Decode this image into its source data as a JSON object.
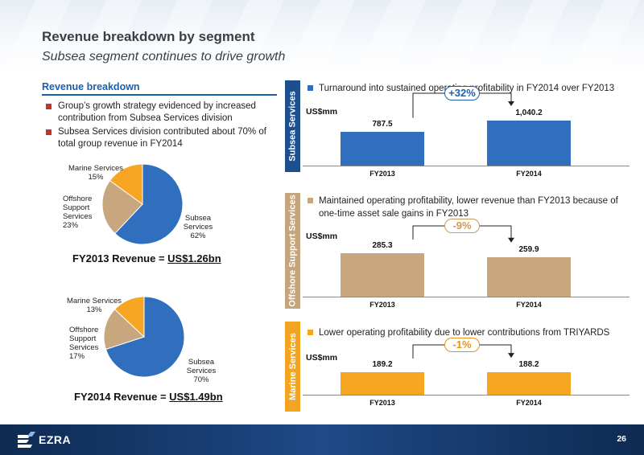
{
  "header": {
    "title": "Revenue breakdown by segment",
    "subtitle": "Subsea segment continues to drive growth"
  },
  "left": {
    "section_title": "Revenue breakdown",
    "bullets": [
      "Group’s growth strategy evidenced by increased contribution from Subsea Services division",
      "Subsea Services division contributed about 70% of total group revenue in FY2014"
    ],
    "fy2013_caption_prefix": "FY2013 Revenue = ",
    "fy2013_caption_value": "US$1.26bn",
    "fy2014_caption_prefix": "FY2014 Revenue = ",
    "fy2014_caption_value": "US$1.49bn"
  },
  "panels": [
    {
      "sidebar": "Subsea Services",
      "bullet": "Turnaround into sustained operating profitability in FY2014 over FY2013",
      "unit": "US$mm",
      "change": "+32%"
    },
    {
      "sidebar": "Offshore Support Services",
      "bullet": "Maintained operating profitability, lower revenue than FY2013 because of one-time asset sale gains in FY2013",
      "unit": "US$mm",
      "change": "-9%"
    },
    {
      "sidebar": "Marine Services",
      "bullet": "Lower operating profitability due to lower contributions from TRIYARDS",
      "unit": "US$mm",
      "change": "-1%"
    }
  ],
  "colors": {
    "subsea": "#2f6fbe",
    "offshore": "#c8a77f",
    "marine": "#f6a623",
    "subsea_sidebar": "#1d4f8e",
    "offshore_sidebar": "#c4a57e",
    "marine_sidebar": "#f4a423",
    "change_subsea": "#1b5fb0",
    "change_offshore": "#c99a5b",
    "change_marine": "#e8921c"
  },
  "chart_data": [
    {
      "type": "pie",
      "categories": [
        "Subsea Services",
        "Offshore Support Services",
        "Marine Services"
      ],
      "labels": [
        "Subsea\nServices\n62%",
        "Offshore\nSupport\nServices\n23%",
        "Marine Services\n15%"
      ],
      "values": [
        62,
        23,
        15
      ]
    },
    {
      "type": "pie",
      "categories": [
        "Subsea Services",
        "Offshore Support Services",
        "Marine Services"
      ],
      "labels": [
        "Subsea\nServices\n70%",
        "Offshore\nSupport\nServices\n17%",
        "Marine Services\n13%"
      ],
      "values": [
        70,
        17,
        13
      ]
    },
    {
      "type": "bar",
      "categories": [
        "FY2013",
        "FY2014"
      ],
      "values": [
        787.5,
        1040.2
      ],
      "data_labels": [
        "787.5",
        "1,040.2"
      ],
      "ylabel": "US$mm"
    },
    {
      "type": "bar",
      "categories": [
        "FY2013",
        "FY2014"
      ],
      "values": [
        285.3,
        259.9
      ],
      "data_labels": [
        "285.3",
        "259.9"
      ],
      "ylabel": "US$mm"
    },
    {
      "type": "bar",
      "categories": [
        "FY2013",
        "FY2014"
      ],
      "values": [
        189.2,
        188.2
      ],
      "data_labels": [
        "189.2",
        "188.2"
      ],
      "ylabel": "US$mm"
    }
  ],
  "footer": {
    "logo": "EZRA",
    "page_number": "26"
  }
}
